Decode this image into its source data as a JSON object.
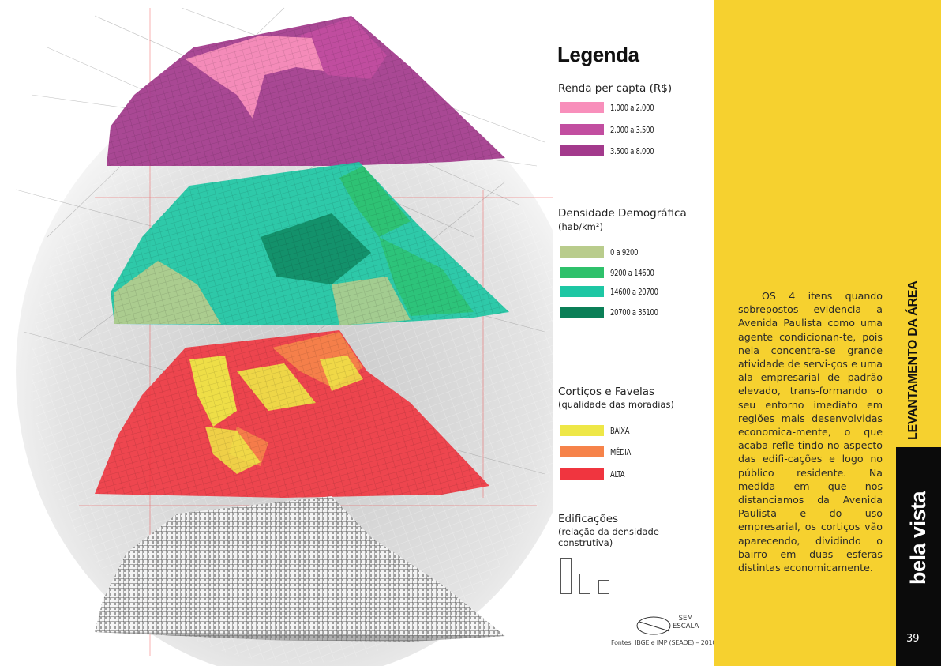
{
  "legend": {
    "title": "Legenda",
    "sections": [
      {
        "id": "renda",
        "title": "Renda per capta (R$)",
        "subtitle": "",
        "items": [
          {
            "label": "1.000 a 2.000",
            "color": "#f88fbb"
          },
          {
            "label": "2.000 a 3.500",
            "color": "#c24ea0"
          },
          {
            "label": "3.500 a 8.000",
            "color": "#a33a8c"
          }
        ]
      },
      {
        "id": "densidade",
        "title": "Densidade Demográfica",
        "subtitle": "(hab/km²)",
        "items": [
          {
            "label": "0 a 9200",
            "color": "#b9cc8c"
          },
          {
            "label": "9200 a 14600",
            "color": "#2ec16b"
          },
          {
            "label": "14600 a 20700",
            "color": "#1ec7a4"
          },
          {
            "label": "20700 a 35100",
            "color": "#0b7f57"
          }
        ]
      },
      {
        "id": "corticos",
        "title": "Cortiços e Favelas",
        "subtitle": "(qualidade das moradias)",
        "items": [
          {
            "label": "BAIXA",
            "color": "#eee747"
          },
          {
            "label": "MÉDIA",
            "color": "#f6834a"
          },
          {
            "label": "ALTA",
            "color": "#f0353f"
          }
        ]
      },
      {
        "id": "edificacoes",
        "title": "Edificações",
        "subtitle_lines": [
          "(relação da densidade",
          "construtiva)"
        ]
      }
    ]
  },
  "scale": {
    "line1": "SEM",
    "line2": "ESCALA"
  },
  "sources": "Fontes: IBGE e IMP (SEADE) – 2010",
  "body_text": "OS 4 itens quando sobrepostos evidencia a Avenida Paulista como uma agente condicionan-te, pois nela concentra-se grande atividade de servi-ços e uma ala empresarial de padrão elevado, trans-formando o seu entorno imediato em regiões mais desenvolvidas economica-mente, o que acaba refle-tindo no aspecto das edifi-cações e logo no público residente. Na medida em que nos distanciamos da Avenida Paulista e do uso empresarial, os cortiços vão aparecendo, dividindo o bairro em duas esferas distintas economicamente.",
  "section_title": "LEVANTAMENTO DA ÁREA",
  "neighborhood": "bela vista",
  "page_number": "39",
  "colors": {
    "panel": "#f6d12f",
    "side_bar": "#0b0b0b"
  },
  "layers": [
    {
      "name": "renda",
      "colors": [
        "#a33a8c",
        "#c24ea0",
        "#f88fbb"
      ]
    },
    {
      "name": "densidade",
      "colors": [
        "#0b7f57",
        "#1ec7a4",
        "#2ec16b",
        "#b9cc8c"
      ]
    },
    {
      "name": "corticos",
      "colors": [
        "#f0353f",
        "#f6834a",
        "#eee747"
      ]
    },
    {
      "name": "edificacoes",
      "colors": [
        "#ffffff",
        "#9a9a9a"
      ]
    }
  ]
}
